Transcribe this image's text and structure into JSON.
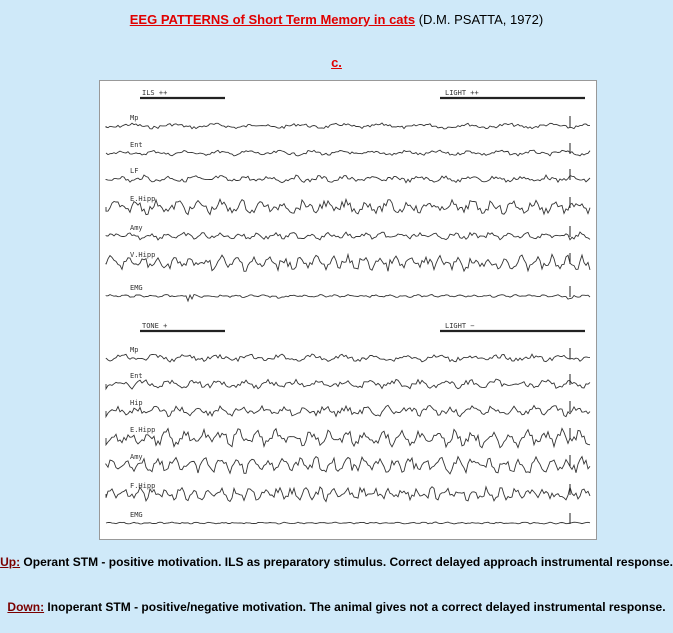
{
  "header": {
    "title_red": "EEG PATTERNS of Short Term Memory in cats",
    "title_author": "(D.M. PSATTA, 1972)",
    "panel": "c."
  },
  "figure": {
    "top": {
      "stim_left": "ILS ++",
      "stim_right": "LIGHT ++",
      "channels": [
        "Mp",
        "Ent",
        "LF",
        "E.Hipp",
        "Amy",
        "V.Hipp",
        "EMG"
      ]
    },
    "bottom": {
      "stim_left": "TONE +",
      "stim_right": "LIGHT −",
      "channels": [
        "Mp",
        "Ent",
        "Hip",
        "E.Hipp",
        "Amy",
        "F.Hipp",
        "EMG"
      ]
    }
  },
  "caption": {
    "up_label": "Up:",
    "up_text": "Operant STM - positive motivation. ILS as preparatory stimulus. Correct delayed  approach instrumental response.",
    "down_label": "Down:",
    "down_text": "Inoperant STM  - positive/negative motivation. The animal gives not a correct delayed instrumental response."
  }
}
